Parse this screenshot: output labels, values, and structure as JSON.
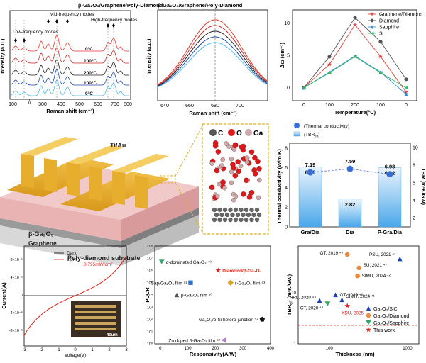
{
  "panels": {
    "raman": {
      "title": "β-Ga₂O₃/Graphene/Poly-Diamond",
      "xlabel": "Raman shift (cm⁻¹)",
      "ylabel": "Intensity (a.u.)",
      "xticks": [
        "100",
        "200",
        "300",
        "400",
        "500",
        "600",
        "700",
        "800"
      ],
      "annotations": [
        "Low-frequency modes",
        "Mid-frequency modes",
        "High-frequency modes"
      ],
      "temps": [
        {
          "label": "0°C",
          "color": "#e23a2d"
        },
        {
          "label": "100°C",
          "color": "#c8272a"
        },
        {
          "label": "200°C",
          "color": "#222222"
        },
        {
          "label": "100°C",
          "color": "#1c47a8"
        },
        {
          "label": "0°C",
          "color": "#4fb6ea"
        }
      ]
    },
    "zoom": {
      "title": "β-Ga₂O₃/Graphene/Poly-Diamond",
      "xlabel": "Raman shift (cm⁻¹)",
      "ylabel": "Intensity (a.u.)",
      "xticks": [
        "640",
        "660",
        "680",
        "700"
      ]
    },
    "device": {
      "electrode_label": "Ti/Au",
      "layer1": "β-Ga₂O₃",
      "layer2": "Graphene",
      "substrate": "Poly-diamond substrate",
      "atoms": [
        "C",
        "O",
        "Ga"
      ]
    },
    "thermal": {
      "legend1": "(Thermal conductivity)",
      "legend2": "(TBR",
      "legend2_sub": "eff",
      "legend2_tail": ")",
      "ylabel_left": "Thermal conductivity (W/m K)",
      "ylabel_right": "TBR (m²K/GW)",
      "yticks_left": [
        "0",
        "2",
        "4",
        "6",
        "8"
      ],
      "yticks_right": [
        "2",
        "4",
        "6",
        "8",
        "10"
      ]
    },
    "iv": {
      "xlabel": "Voltage(V)",
      "ylabel": "Current(A)",
      "legend": [
        "Dark",
        "Light"
      ],
      "power": "0.795mW/cm²",
      "scale": "40um",
      "xticks": [
        "-3",
        "-2",
        "-1",
        "0",
        "1",
        "2",
        "3"
      ],
      "yticks": [
        "8×10⁻⁶",
        "4×10⁻⁶",
        "0",
        "-4×10⁻⁶",
        "-8×10⁻⁶"
      ]
    },
    "pdcr": {
      "xlabel": "Responsivity(A/W)",
      "ylabel": "PDCR",
      "xticks": [
        "0",
        "100",
        "200",
        "300",
        "400"
      ],
      "yticks": [
        "10⁰",
        "10¹",
        "10²",
        "10³",
        "10⁴",
        "10⁵",
        "10⁶",
        "10⁷",
        "10⁸"
      ],
      "points": [
        {
          "label": "α-dominated Ga₂O₃ ⁴⁹",
          "color": "#3aa870"
        },
        {
          "label": "Diamond/β-Ga₂O₃",
          "color": "#e0201b"
        },
        {
          "label": "Sap/Ga₂O₃ film ⁵¹",
          "color": "#2f73c9"
        },
        {
          "label": "ε-Ga₂O₃ film ⁵³",
          "color": "#d9a21b"
        },
        {
          "label": "β-Ga₂O₃ film ⁵⁰",
          "color": "#555555"
        },
        {
          "label": "Ga₂O₃/p-Si hetero-junction ⁵⁴",
          "color": "#111111"
        },
        {
          "label": "Zn doped β-Ga₂O₃ film ⁵²",
          "color": "#b27ad8"
        }
      ]
    },
    "tbr": {
      "xlabel": "Thickness (nm)",
      "ylabel": "TBR",
      "ylabel_sub": "eff",
      "ylabel_tail": " (m²K/GW)",
      "xticks": [
        "100",
        "1000"
      ],
      "yticks": [
        "1",
        "10"
      ],
      "labels": [
        "PSU, 2021 ⁴⁷",
        "GT, 2019 ⁴⁵",
        "SU, 2021 ⁴³",
        "SIMIT, 2024 ⁴²",
        "GT, 2020 ⁴⁶",
        "NRL, 2020 ⁴⁴",
        "SIMIT, 2024 ⁴¹",
        "GT, 2020 ⁴⁸",
        "XDU, 2025"
      ],
      "legend": [
        {
          "label": "Ga₂O₃/SiC",
          "color": "#1b3fb5"
        },
        {
          "label": "Ga₂O₃/Diamond",
          "color": "#e98a3c"
        },
        {
          "label": "Ga₂O₃/Sapphire",
          "color": "#35a66a"
        },
        {
          "label": "This work",
          "color": "#e0201b"
        }
      ]
    }
  },
  "chart_data": [
    {
      "type": "line",
      "title": "",
      "xlabel": "Temperature(°C)",
      "ylabel": "Δω (cm⁻¹)",
      "xcategories": [
        "0",
        "100",
        "200",
        "100",
        "0"
      ],
      "ylim": [
        -2,
        12
      ],
      "yticks": [
        "0",
        "5",
        "10"
      ],
      "series": [
        {
          "name": "Graphene/Diamond",
          "color": "#e0453a",
          "marker": "star",
          "values": [
            0,
            3.6,
            9.7,
            4.8,
            -0.7
          ]
        },
        {
          "name": "Diamond",
          "color": "#555555",
          "marker": "circle",
          "values": [
            0,
            4.8,
            10.8,
            7.1,
            1.3
          ]
        },
        {
          "name": "Sapphire",
          "color": "#2f8fd8",
          "marker": "triangle",
          "values": [
            0,
            2.4,
            4.9,
            2.4,
            -1.0
          ]
        },
        {
          "name": "Si",
          "color": "#3bb36a",
          "marker": "triangle-left",
          "values": [
            0,
            2.3,
            4.8,
            2.3,
            0
          ]
        }
      ],
      "legend_position": "top-right"
    },
    {
      "type": "bar",
      "title": "",
      "categories": [
        "Gra/Dia",
        "Dia",
        "P-Gra/Dia"
      ],
      "series": [
        {
          "name": "Thermal conductivity",
          "values": [
            6.08,
            2.82,
            6.02
          ]
        },
        {
          "name": "TBR",
          "values": [
            7.19,
            7.59,
            6.98
          ]
        }
      ],
      "ylim_left": [
        0,
        8.5
      ],
      "ylim_right": [
        1,
        10.5
      ]
    },
    {
      "type": "scatter",
      "title": "",
      "xlabel": "Responsivity(A/W)",
      "ylabel": "PDCR",
      "xlim": [
        -20,
        400
      ],
      "ylog": true,
      "points": [
        {
          "label": "α-dominated Ga₂O₃ 49",
          "x": 5,
          "y": 5000000
        },
        {
          "label": "Diamond/β-Ga₂O₃",
          "x": 210,
          "y": 1000000
        },
        {
          "label": "Sap/Ga₂O₃ film 51",
          "x": 110,
          "y": 100000
        },
        {
          "label": "ε-Ga₂O₃ film 53",
          "x": 255,
          "y": 100000
        },
        {
          "label": "β-Ga₂O₃ film 50",
          "x": 60,
          "y": 10000
        },
        {
          "label": "Ga₂O₃/p-Si hetero-junction 54",
          "x": 370,
          "y": 100
        },
        {
          "label": "Zn doped β-Ga₂O₃ film 52",
          "x": 230,
          "y": 2
        }
      ]
    },
    {
      "type": "scatter",
      "title": "",
      "xlabel": "Thickness (nm)",
      "ylabel": "TBReff (m²K/GW)",
      "xlog": true,
      "ylog": true,
      "points": [
        {
          "label": "PSU, 2021",
          "group": "Ga₂O₃/SiC",
          "x": 800,
          "y": 45
        },
        {
          "label": "GT, 2019",
          "group": "Ga₂O₃/Diamond",
          "x": 170,
          "y": 55
        },
        {
          "label": "SU, 2021",
          "group": "Ga₂O₃/Diamond",
          "x": 240,
          "y": 30
        },
        {
          "label": "SIMIT, 2024",
          "group": "Ga₂O₃/Diamond",
          "x": 230,
          "y": 21
        },
        {
          "label": "GT, 2020",
          "group": "Ga₂O₃/SiC",
          "x": 120,
          "y": 9
        },
        {
          "label": "NRL, 2020",
          "group": "Ga₂O₃/SiC",
          "x": 75,
          "y": 7
        },
        {
          "label": "SIMIT, 2024",
          "group": "Ga₂O₃/SiC",
          "x": 145,
          "y": 7.2
        },
        {
          "label": "GT, 2020",
          "group": "Ga₂O₃/Sapphire",
          "x": 95,
          "y": 6
        },
        {
          "label": "XDU, 2025",
          "group": "This work",
          "x": 170,
          "y": 5.5
        }
      ]
    }
  ]
}
